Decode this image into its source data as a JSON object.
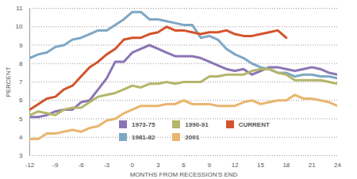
{
  "chart_data": {
    "type": "line",
    "x_label": "MONTHS FROM RECESSION'S END",
    "y_label": "PERCENT",
    "x": [
      -12,
      -11,
      -10,
      -9,
      -8,
      -7,
      -6,
      -5,
      -4,
      -3,
      -2,
      -1,
      0,
      1,
      2,
      3,
      4,
      5,
      6,
      7,
      8,
      9,
      10,
      11,
      12,
      13,
      14,
      15,
      16,
      17,
      18,
      19,
      20,
      21,
      22,
      23,
      24
    ],
    "series": [
      {
        "name": "1973-75",
        "color": "#8b75b5",
        "values": [
          5.1,
          5.1,
          5.2,
          5.4,
          5.5,
          5.5,
          5.9,
          6.0,
          6.6,
          7.2,
          8.1,
          8.1,
          8.6,
          8.8,
          9.0,
          8.8,
          8.6,
          8.4,
          8.4,
          8.4,
          8.3,
          8.1,
          7.9,
          7.7,
          7.6,
          7.7,
          7.4,
          7.6,
          7.8,
          7.8,
          7.7,
          7.6,
          7.7,
          7.8,
          7.7,
          7.5,
          7.4
        ]
      },
      {
        "name": "1981-82",
        "color": "#7fa7c4",
        "values": [
          8.3,
          8.5,
          8.6,
          8.9,
          9.0,
          9.3,
          9.4,
          9.6,
          9.8,
          9.8,
          10.1,
          10.4,
          10.8,
          10.8,
          10.4,
          10.4,
          10.3,
          10.2,
          10.1,
          10.1,
          9.4,
          9.5,
          9.3,
          8.8,
          8.5,
          8.3,
          8.0,
          7.8,
          7.7,
          7.5,
          7.5,
          7.3,
          7.4,
          7.4,
          7.3,
          7.3,
          7.2
        ]
      },
      {
        "name": "1990-91",
        "color": "#b4b66a",
        "values": [
          5.2,
          5.4,
          5.3,
          5.2,
          5.5,
          5.6,
          5.6,
          5.9,
          6.2,
          6.3,
          6.4,
          6.6,
          6.8,
          6.7,
          6.9,
          6.9,
          7.0,
          6.9,
          7.0,
          7.0,
          7.0,
          7.3,
          7.3,
          7.4,
          7.4,
          7.4,
          7.6,
          7.7,
          7.7,
          7.5,
          7.4,
          7.1,
          7.1,
          7.1,
          7.1,
          7.0,
          6.9
        ]
      },
      {
        "name": "2001",
        "color": "#e9b56f",
        "values": [
          3.9,
          3.9,
          4.2,
          4.2,
          4.3,
          4.4,
          4.3,
          4.5,
          4.6,
          4.9,
          5.0,
          5.3,
          5.5,
          5.7,
          5.7,
          5.7,
          5.8,
          5.8,
          6.0,
          5.8,
          5.8,
          5.8,
          5.7,
          5.7,
          5.7,
          5.9,
          6.0,
          5.8,
          5.9,
          6.0,
          6.0,
          6.3,
          6.1,
          6.1,
          6.0,
          5.9,
          5.7
        ]
      },
      {
        "name": "CURRENT",
        "color": "#d2542c",
        "values": [
          5.5,
          5.8,
          6.1,
          6.2,
          6.6,
          6.8,
          7.3,
          7.8,
          8.1,
          8.5,
          8.8,
          9.3,
          9.4,
          9.4,
          9.6,
          9.7,
          10.0,
          9.8,
          9.8,
          9.7,
          9.6,
          9.7,
          9.7,
          9.8,
          9.6,
          9.5,
          9.5,
          9.6,
          9.7,
          9.8,
          9.4,
          null,
          null,
          null,
          null,
          null,
          null
        ]
      }
    ],
    "xlim": [
      -12,
      24
    ],
    "xticks": [
      -12,
      -9,
      -6,
      -3,
      0,
      3,
      6,
      9,
      12,
      15,
      18,
      21,
      24
    ],
    "ylim": [
      3,
      11
    ],
    "yticks": [
      3,
      4,
      5,
      6,
      7,
      8,
      9,
      10,
      11
    ],
    "grid": true,
    "legend": "bottom"
  }
}
